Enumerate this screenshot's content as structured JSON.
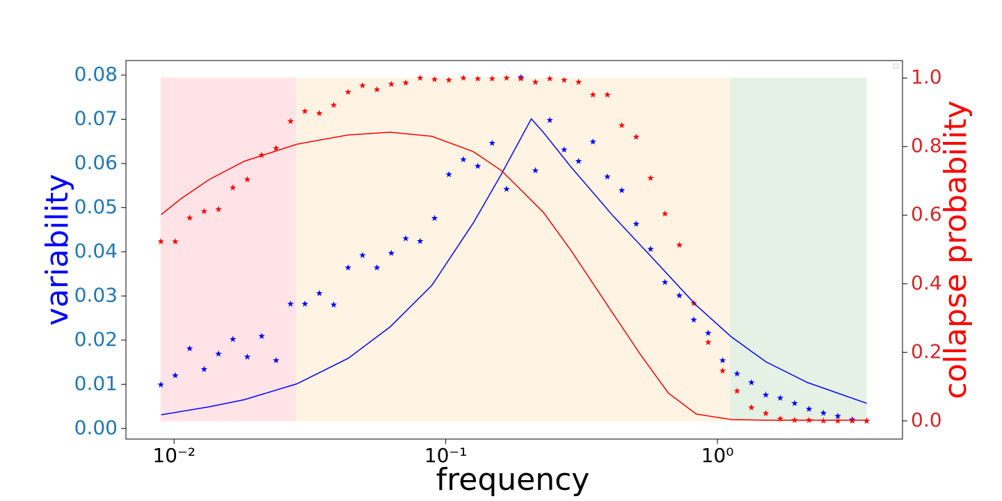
{
  "chart_data": {
    "type": "scatter",
    "xlabel": "frequency",
    "ylabel": "variability",
    "y2label": "collapse probability",
    "ylabel_color": "blue",
    "y2label_color": "red",
    "ytick_color": "#1f77b4",
    "y2tick_color": "#d62728",
    "log_x": true,
    "xlim": [
      0.00665,
      4.8
    ],
    "ylim": [
      -0.0024,
      0.0833
    ],
    "y2lim": [
      -0.053,
      1.051
    ],
    "xticks": [
      {
        "value": 0.01,
        "label": "10⁻²"
      },
      {
        "value": 0.1,
        "label": "10⁻¹"
      },
      {
        "value": 1,
        "label": "10⁰"
      }
    ],
    "yticks": [
      {
        "value": 0,
        "label": "0.00"
      },
      {
        "value": 0.01,
        "label": "0.01"
      },
      {
        "value": 0.02,
        "label": "0.02"
      },
      {
        "value": 0.03,
        "label": "0.03"
      },
      {
        "value": 0.04,
        "label": "0.04"
      },
      {
        "value": 0.05,
        "label": "0.05"
      },
      {
        "value": 0.06,
        "label": "0.06"
      },
      {
        "value": 0.07,
        "label": "0.07"
      },
      {
        "value": 0.08,
        "label": "0.08"
      }
    ],
    "y2ticks": [
      {
        "value": 0,
        "label": "0.0"
      },
      {
        "value": 0.2,
        "label": "0.2"
      },
      {
        "value": 0.4,
        "label": "0.4"
      },
      {
        "value": 0.6,
        "label": "0.6"
      },
      {
        "value": 0.8,
        "label": "0.8"
      },
      {
        "value": 1,
        "label": "1.0"
      }
    ],
    "regions": [
      {
        "x": [
          0.00894,
          0.0282
        ],
        "y2": [
          0,
          1
        ],
        "color": "#ffe3e6"
      },
      {
        "x": [
          0.0282,
          1.118
        ],
        "y2": [
          0,
          1
        ],
        "color": "#fff4e4"
      },
      {
        "x": [
          1.118,
          3.53
        ],
        "y2": [
          0,
          1
        ],
        "color": "#e4f1e4"
      }
    ],
    "series": [
      {
        "mark": "star",
        "color": "blue",
        "axis": "y",
        "x": [
          0.00894,
          0.0101,
          0.01141,
          0.0129,
          0.01457,
          0.01646,
          0.0186,
          0.02101,
          0.02374,
          0.02683,
          0.03031,
          0.03424,
          0.03869,
          0.04371,
          0.04939,
          0.0558,
          0.06304,
          0.07123,
          0.08048,
          0.09093,
          0.1027,
          0.1161,
          0.1312,
          0.1482,
          0.1674,
          0.1891,
          0.2137,
          0.2415,
          0.2728,
          0.3082,
          0.3482,
          0.3934,
          0.4445,
          0.5023,
          0.5675,
          0.6412,
          0.7244,
          0.8185,
          0.9249,
          1.045,
          1.181,
          1.334,
          1.507,
          1.703,
          1.924,
          2.174,
          2.456,
          2.775,
          3.135,
          3.542
        ],
        "values": [
          0.0099,
          0.012,
          0.0181,
          0.0134,
          0.0169,
          0.0202,
          0.0162,
          0.0209,
          0.0154,
          0.0282,
          0.0282,
          0.0306,
          0.028,
          0.0364,
          0.0392,
          0.0364,
          0.0397,
          0.043,
          0.0424,
          0.0476,
          0.0575,
          0.0609,
          0.0594,
          0.0646,
          0.0542,
          0.0795,
          0.0584,
          0.0698,
          0.0631,
          0.0605,
          0.0649,
          0.057,
          0.0539,
          0.0463,
          0.0406,
          0.0331,
          0.0301,
          0.0246,
          0.0216,
          0.0154,
          0.0124,
          0.0104,
          0.0076,
          0.0069,
          0.0057,
          0.0044,
          0.0035,
          0.0028,
          0.002,
          0.0017
        ]
      },
      {
        "mark": "star",
        "color": "red",
        "axis": "y2",
        "x": [
          0.00894,
          0.0101,
          0.01141,
          0.0129,
          0.01457,
          0.01646,
          0.0186,
          0.02101,
          0.02374,
          0.02683,
          0.03031,
          0.03424,
          0.03869,
          0.04371,
          0.04939,
          0.0558,
          0.06304,
          0.07123,
          0.08048,
          0.09093,
          0.1027,
          0.1161,
          0.1312,
          0.1482,
          0.1674,
          0.1891,
          0.2137,
          0.2415,
          0.2728,
          0.3082,
          0.3482,
          0.3934,
          0.4445,
          0.5023,
          0.5675,
          0.6412,
          0.7244,
          0.8185,
          0.9249,
          1.045,
          1.181,
          1.334,
          1.507,
          1.703,
          1.924,
          2.174,
          2.456,
          2.775,
          3.135,
          3.542
        ],
        "values": [
          0.523,
          0.523,
          0.592,
          0.611,
          0.617,
          0.68,
          0.704,
          0.775,
          0.795,
          0.874,
          0.903,
          0.897,
          0.921,
          0.959,
          0.978,
          0.966,
          0.982,
          0.986,
          1.0,
          0.996,
          0.994,
          1.0,
          0.998,
          0.998,
          1.0,
          0.998,
          0.988,
          0.998,
          0.994,
          0.988,
          0.951,
          0.951,
          0.862,
          0.828,
          0.708,
          0.604,
          0.513,
          0.343,
          0.229,
          0.146,
          0.087,
          0.039,
          0.022,
          0.006,
          0.002,
          0.002,
          0,
          0,
          0,
          0
        ]
      },
      {
        "mark": "line",
        "color": "blue",
        "axis": "y",
        "x": [
          0.00897,
          0.01347,
          0.01809,
          0.02831,
          0.04379,
          0.0624,
          0.08888,
          0.1265,
          0.1603,
          0.2065,
          0.2283,
          0.2891,
          0.4118,
          0.5865,
          0.8354,
          1.122,
          1.507,
          2.146,
          3.542
        ],
        "values": [
          0.0031,
          0.0049,
          0.0065,
          0.0101,
          0.0159,
          0.023,
          0.0324,
          0.0466,
          0.0576,
          0.0701,
          0.0671,
          0.0592,
          0.0482,
          0.0381,
          0.0279,
          0.0208,
          0.0151,
          0.0104,
          0.0057
        ]
      },
      {
        "mark": "line",
        "color": "red",
        "axis": "y2",
        "x": [
          0.00897,
          0.01064,
          0.01347,
          0.01809,
          0.02831,
          0.04379,
          0.0624,
          0.08888,
          0.1265,
          0.1603,
          0.2283,
          0.2891,
          0.4118,
          0.5212,
          0.6599,
          0.8354,
          1.122,
          1.507,
          3.542
        ],
        "values": [
          0.602,
          0.649,
          0.704,
          0.757,
          0.807,
          0.834,
          0.842,
          0.83,
          0.785,
          0.73,
          0.609,
          0.497,
          0.314,
          0.193,
          0.081,
          0.02,
          0.004,
          0.002,
          0.002
        ]
      }
    ]
  }
}
